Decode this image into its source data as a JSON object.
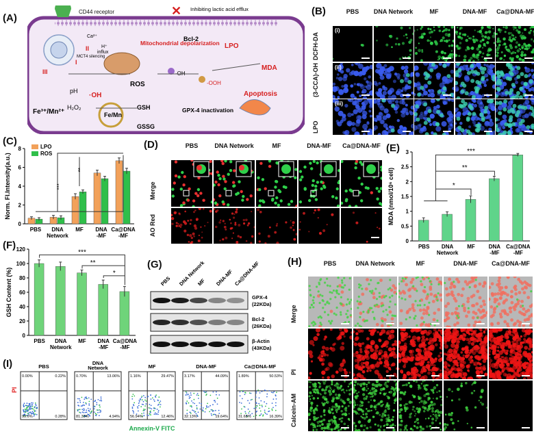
{
  "panel_labels": {
    "A": "(A)",
    "B": "(B)",
    "C": "(C)",
    "D": "(D)",
    "E": "(E)",
    "F": "(F)",
    "G": "(G)",
    "H": "(H)",
    "I": "(I)"
  },
  "groups": [
    "PBS",
    "DNA Network",
    "MF",
    "DNA-MF",
    "Ca@DNA-MF"
  ],
  "colors": {
    "lpo": "#f2a15a",
    "ros": "#2fbf4a",
    "mda": "#5fd48a",
    "gsh": "#6fd47a",
    "cell_border": "#7a3b8f",
    "cell_fill": "#f3e9f6",
    "membrane": "#c9a6d8",
    "red": "#e02020"
  },
  "schematic": {
    "cd44": "CD44 receptor",
    "inhibit": "Inhibiting lactic acid efflux",
    "ca": "Ca²⁺",
    "h": "H⁺",
    "influx": "influx",
    "mct4": "MCT4 silencing",
    "roman_i": "I",
    "roman_ii": "II",
    "roman_iii": "III",
    "mito": "Mitochondrial depolarization",
    "bcl2": "Bcl-2",
    "lpo": "LPO",
    "mda": "MDA",
    "apoptosis": "Apoptosis",
    "oh": "·OH",
    "oh2": "·OH",
    "ooh": "-OOH",
    "ph": "pH",
    "fe": "Fe³⁺/Mn²⁺",
    "h2o2": "H₂O₂",
    "ros": "ROS",
    "gsh": "GSH",
    "gssg": "GSSG",
    "femn": "Fe/Mn",
    "gpx4": "GPX-4 inactivation"
  },
  "panel_b": {
    "rows": [
      "DCFH-DA",
      "(3-CCA)-OH",
      "LPO"
    ],
    "romans": [
      "(i)",
      "(ii)",
      "(iii)"
    ]
  },
  "panel_d": {
    "rows": [
      "Merge",
      "AO Red"
    ]
  },
  "panel_h": {
    "rows": [
      "Merge",
      "PI",
      "Calcein-AM"
    ]
  },
  "panel_g": {
    "bands": [
      "GPX-4\n(22KDa)",
      "Bcl-2\n(26KDa)",
      "β-Actin\n(43KDa)"
    ],
    "band_intensity": [
      [
        1,
        0.95,
        0.75,
        0.45,
        0.4
      ],
      [
        0.9,
        0.85,
        0.7,
        0.5,
        0.45
      ],
      [
        1,
        1,
        1,
        1,
        1
      ]
    ]
  },
  "panel_i": {
    "xlabel": "Annexin-V FITC",
    "ylabel": "PI",
    "quadrants": [
      [
        "0.00%",
        "0.22%",
        "99.6%",
        "0.28%"
      ],
      [
        "0.70%",
        "13.06%",
        "81.33%",
        "4.94%"
      ],
      [
        "1.16%",
        "29.47%",
        "56.94%",
        "12.46%"
      ],
      [
        "3.17%",
        "44.09%",
        "32.13%",
        "19.64%"
      ],
      [
        "1.89%",
        "50.53%",
        "31.68%",
        "16.39%"
      ]
    ]
  },
  "chart_data": [
    {
      "type": "bar",
      "panel": "C",
      "categories": [
        "PBS",
        "DNA Network",
        "MF",
        "DNA -MF",
        "Ca@DNA -MF"
      ],
      "ylabel": "Norm. Fl.Intensity(a.u.)",
      "ylim": [
        0,
        8
      ],
      "yticks": [
        0,
        2,
        4,
        6,
        8
      ],
      "series": [
        {
          "name": "LPO",
          "values": [
            0.6,
            0.7,
            2.9,
            5.4,
            6.7
          ],
          "err": [
            0.15,
            0.2,
            0.3,
            0.3,
            0.3
          ]
        },
        {
          "name": "ROS",
          "values": [
            0.5,
            0.65,
            3.4,
            4.8,
            5.6
          ],
          "err": [
            0.15,
            0.2,
            0.2,
            0.25,
            0.3
          ]
        }
      ],
      "annotations": [
        "***",
        "**"
      ]
    },
    {
      "type": "bar",
      "panel": "E",
      "categories": [
        "PBS",
        "DNA Network",
        "MF",
        "DNA -MF",
        "Ca@DNA -MF"
      ],
      "ylabel": "MDA (nmol/10⁶ cell)",
      "ylim": [
        0,
        3.0
      ],
      "yticks": [
        0.0,
        0.5,
        1.0,
        1.5,
        2.0,
        2.5,
        3.0
      ],
      "series": [
        {
          "values": [
            0.7,
            0.9,
            1.4,
            2.1,
            2.9
          ],
          "err": [
            0.08,
            0.08,
            0.12,
            0.08,
            0.05
          ]
        }
      ],
      "annotations": [
        "***",
        "**",
        "*"
      ]
    },
    {
      "type": "bar",
      "panel": "F",
      "categories": [
        "PBS",
        "DNA Network",
        "MF",
        "DNA -MF",
        "Ca@DNA -MF"
      ],
      "ylabel": "GSH Content (%)",
      "ylim": [
        0,
        120
      ],
      "yticks": [
        0,
        20,
        40,
        60,
        80,
        100,
        120
      ],
      "series": [
        {
          "values": [
            100,
            96,
            87,
            71,
            61
          ],
          "err": [
            5,
            6,
            4,
            6,
            7
          ]
        }
      ],
      "annotations": [
        "***",
        "**",
        "*"
      ]
    }
  ]
}
